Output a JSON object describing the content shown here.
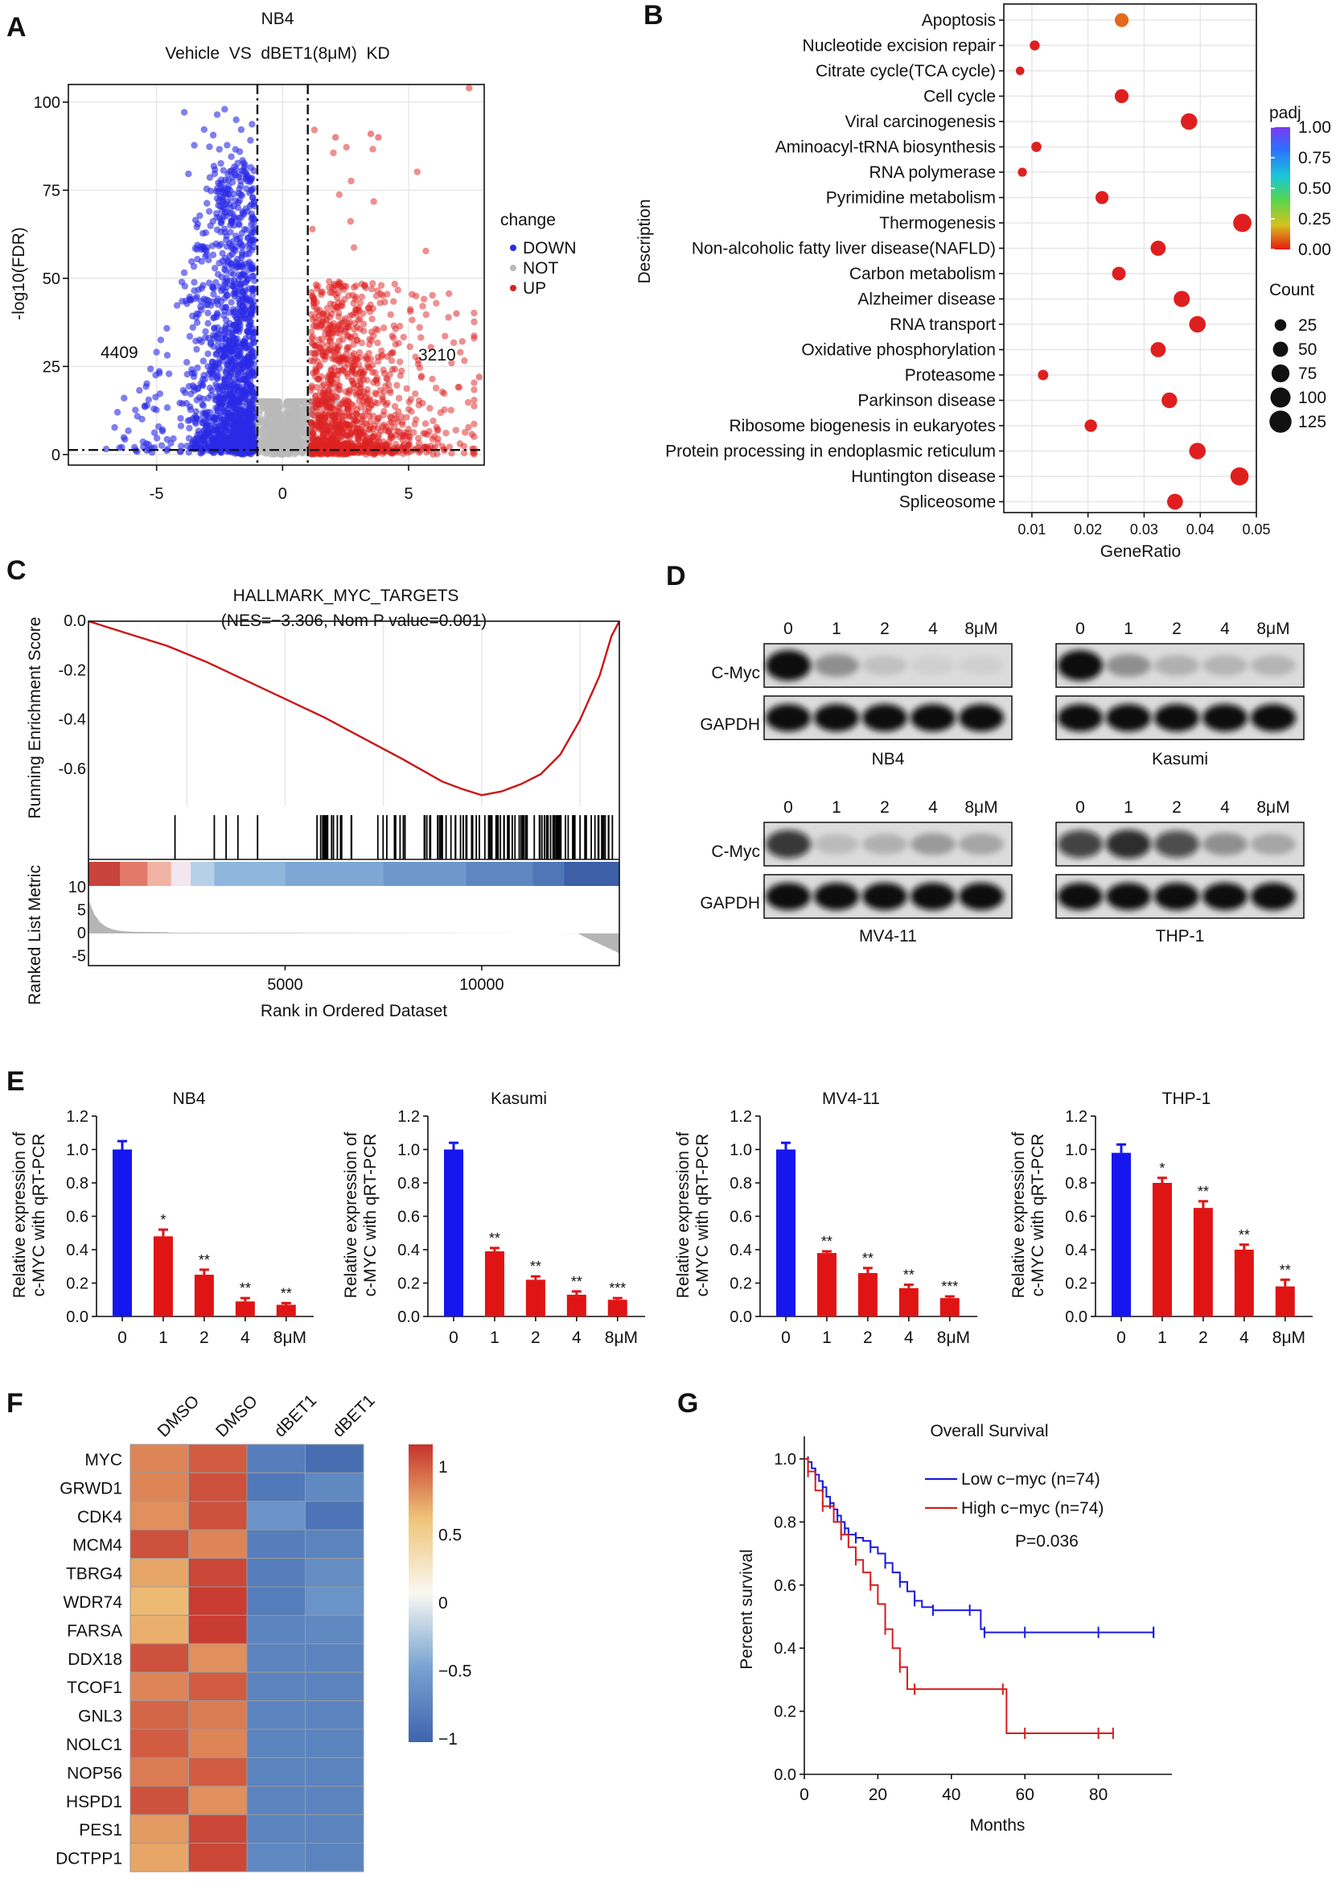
{
  "panels": {
    "A": "A",
    "B": "B",
    "C": "C",
    "D": "D",
    "E": "E",
    "F": "F",
    "G": "G"
  },
  "chart_data": [
    {
      "id": "A",
      "type": "scatter",
      "title": "NB4",
      "subtitle": "Vehicle  VS  dBET1(8μM)  KD",
      "xlabel": "",
      "ylabel": "-log10(FDR)",
      "xlim": [
        -8.5,
        8
      ],
      "ylim": [
        -3,
        105
      ],
      "xticks": [
        -5,
        0,
        5
      ],
      "yticks": [
        0,
        25,
        50,
        75,
        100
      ],
      "count_down": "4409",
      "count_up": "3210",
      "thresholds": {
        "x": [
          -1,
          1
        ],
        "y": 1.3
      },
      "legend": {
        "title": "change",
        "items": [
          {
            "label": "DOWN",
            "color": "#2a2ae6"
          },
          {
            "label": "NOT",
            "color": "#b9b9b9"
          },
          {
            "label": "UP",
            "color": "#dd2222"
          }
        ]
      }
    },
    {
      "id": "B",
      "type": "scatter",
      "xlabel": "GeneRatio",
      "ylabel": "Description",
      "xlim": [
        0.005,
        0.05
      ],
      "xticks": [
        0.01,
        0.02,
        0.03,
        0.04,
        0.05
      ],
      "xtick_labels": [
        "0.01",
        "0.02",
        "0.03",
        "0.04",
        "0.05"
      ],
      "terms": [
        {
          "label": "Apoptosis",
          "ratio": 0.026,
          "count": 40,
          "padj": 0.08
        },
        {
          "label": "Nucleotide excision repair",
          "ratio": 0.0105,
          "count": 16,
          "padj": 0.0
        },
        {
          "label": "Citrate cycle(TCA cycle)",
          "ratio": 0.0079,
          "count": 10,
          "padj": 0.0
        },
        {
          "label": "Cell cycle",
          "ratio": 0.026,
          "count": 40,
          "padj": 0.0
        },
        {
          "label": "Viral carcinogenesis",
          "ratio": 0.038,
          "count": 62,
          "padj": 0.0
        },
        {
          "label": "Aminoacyl-tRNA biosynthesis",
          "ratio": 0.0108,
          "count": 17,
          "padj": 0.0
        },
        {
          "label": "RNA polymerase",
          "ratio": 0.0083,
          "count": 12,
          "padj": 0.0
        },
        {
          "label": "Pyrimidine metabolism",
          "ratio": 0.0225,
          "count": 34,
          "padj": 0.0
        },
        {
          "label": "Thermogenesis",
          "ratio": 0.0475,
          "count": 80,
          "padj": 0.0
        },
        {
          "label": "Non-alcoholic fatty liver disease(NAFLD)",
          "ratio": 0.0325,
          "count": 50,
          "padj": 0.0
        },
        {
          "label": "Carbon metabolism",
          "ratio": 0.0255,
          "count": 38,
          "padj": 0.0
        },
        {
          "label": "Alzheimer disease",
          "ratio": 0.0367,
          "count": 58,
          "padj": 0.0
        },
        {
          "label": "RNA transport",
          "ratio": 0.0395,
          "count": 62,
          "padj": 0.0
        },
        {
          "label": "Oxidative phosphorylation",
          "ratio": 0.0325,
          "count": 50,
          "padj": 0.0
        },
        {
          "label": "Proteasome",
          "ratio": 0.012,
          "count": 18,
          "padj": 0.0
        },
        {
          "label": "Parkinson disease",
          "ratio": 0.0345,
          "count": 54,
          "padj": 0.0
        },
        {
          "label": "Ribosome biogenesis in eukaryotes",
          "ratio": 0.0205,
          "count": 30,
          "padj": 0.0
        },
        {
          "label": "Protein processing in endoplasmic reticulum",
          "ratio": 0.0395,
          "count": 62,
          "padj": 0.0
        },
        {
          "label": "Huntington disease",
          "ratio": 0.047,
          "count": 78,
          "padj": 0.0
        },
        {
          "label": "Spliceosome",
          "ratio": 0.0355,
          "count": 56,
          "padj": 0.0
        }
      ],
      "color_legend": {
        "title": "padj",
        "ticks": [
          "1.00",
          "0.75",
          "0.50",
          "0.25",
          "0.00"
        ]
      },
      "size_legend": {
        "title": "Count",
        "values": [
          25,
          50,
          75,
          100,
          125
        ]
      }
    },
    {
      "id": "C",
      "type": "line",
      "title": "HALLMARK_MYC_TARGETS",
      "subtitle": "(NES=−3.306, Nom P value=0.001)",
      "ylabel_top": "Running Enrichment Score",
      "ylabel_bottom": "Ranked List Metric",
      "xlabel": "Rank in Ordered Dataset",
      "xlim": [
        0,
        13500
      ],
      "xticks": [
        5000,
        10000
      ],
      "yticks_top": [
        "0.0",
        "-0.2",
        "-0.4",
        "-0.6"
      ],
      "yticks_bottom": [
        "10",
        "5",
        "0",
        "-5"
      ],
      "curve_x": [
        0,
        1000,
        2000,
        3000,
        4000,
        5000,
        6000,
        7000,
        8000,
        9000,
        9500,
        10000,
        10500,
        11000,
        11500,
        12000,
        12500,
        13000,
        13300,
        13500
      ],
      "curve_y": [
        0.0,
        -0.05,
        -0.1,
        -0.165,
        -0.24,
        -0.315,
        -0.39,
        -0.475,
        -0.56,
        -0.65,
        -0.68,
        -0.705,
        -0.69,
        -0.66,
        -0.62,
        -0.54,
        -0.4,
        -0.22,
        -0.06,
        0.0
      ]
    },
    {
      "id": "D",
      "type": "blot",
      "doses": [
        "0",
        "1",
        "2",
        "4",
        "8μM"
      ],
      "rows": [
        "C-Myc",
        "GAPDH"
      ],
      "cell_lines": [
        {
          "name": "NB4",
          "cmyc": [
            1.0,
            0.35,
            0.12,
            0.03,
            0.02
          ]
        },
        {
          "name": "Kasumi",
          "cmyc": [
            1.0,
            0.35,
            0.2,
            0.18,
            0.18
          ]
        },
        {
          "name": "MV4-11",
          "cmyc": [
            0.8,
            0.15,
            0.2,
            0.3,
            0.25
          ]
        },
        {
          "name": "THP-1",
          "cmyc": [
            0.75,
            0.85,
            0.7,
            0.35,
            0.25
          ]
        }
      ]
    },
    {
      "id": "E",
      "type": "bar",
      "ylabel": "Relative expression of c-MYC with qRT-PCR",
      "categories": [
        "0",
        "1",
        "2",
        "4",
        "8μM"
      ],
      "ylim": [
        0,
        1.2
      ],
      "yticks": [
        "0.0",
        "0.2",
        "0.4",
        "0.6",
        "0.8",
        "1.0",
        "1.2"
      ],
      "series": [
        {
          "name": "NB4",
          "values": [
            1.0,
            0.48,
            0.25,
            0.09,
            0.07
          ],
          "errors": [
            0.05,
            0.04,
            0.03,
            0.02,
            0.01
          ],
          "stars": [
            "",
            "*",
            "**",
            "**",
            "**"
          ]
        },
        {
          "name": "Kasumi",
          "values": [
            1.0,
            0.39,
            0.22,
            0.13,
            0.1
          ],
          "errors": [
            0.04,
            0.02,
            0.02,
            0.02,
            0.01
          ],
          "stars": [
            "",
            "**",
            "**",
            "**",
            "***"
          ]
        },
        {
          "name": "MV4-11",
          "values": [
            1.0,
            0.38,
            0.26,
            0.17,
            0.11
          ],
          "errors": [
            0.04,
            0.01,
            0.03,
            0.02,
            0.01
          ],
          "stars": [
            "",
            "**",
            "**",
            "**",
            "***"
          ]
        },
        {
          "name": "THP-1",
          "values": [
            0.98,
            0.8,
            0.65,
            0.4,
            0.18
          ],
          "errors": [
            0.05,
            0.03,
            0.04,
            0.03,
            0.04
          ],
          "stars": [
            "",
            "*",
            "**",
            "**",
            "**"
          ]
        }
      ],
      "colors": {
        "control": "#1616ee",
        "treated": "#e01414"
      }
    },
    {
      "id": "F",
      "type": "heatmap",
      "columns": [
        "DMSO",
        "DMSO",
        "dBET1",
        "dBET1"
      ],
      "rows": [
        "MYC",
        "GRWD1",
        "CDK4",
        "MCM4",
        "TBRG4",
        "WDR74",
        "FARSA",
        "DDX18",
        "TCOF1",
        "GNL3",
        "NOLC1",
        "NOP56",
        "HSPD1",
        "PES1",
        "DCTPP1"
      ],
      "values": [
        [
          0.8,
          1.0,
          -0.95,
          -1.1
        ],
        [
          0.8,
          1.05,
          -1.0,
          -0.85
        ],
        [
          0.75,
          1.05,
          -0.75,
          -1.05
        ],
        [
          1.05,
          0.8,
          -0.95,
          -0.9
        ],
        [
          0.65,
          1.1,
          -0.95,
          -0.8
        ],
        [
          0.55,
          1.15,
          -0.95,
          -0.75
        ],
        [
          0.6,
          1.15,
          -0.9,
          -0.85
        ],
        [
          1.05,
          0.75,
          -0.9,
          -0.9
        ],
        [
          0.8,
          1.0,
          -0.9,
          -0.9
        ],
        [
          0.95,
          0.85,
          -0.9,
          -0.9
        ],
        [
          1.0,
          0.8,
          -0.9,
          -0.9
        ],
        [
          0.85,
          1.0,
          -0.9,
          -0.9
        ],
        [
          1.05,
          0.75,
          -0.9,
          -0.9
        ],
        [
          0.7,
          1.1,
          -0.9,
          -0.9
        ],
        [
          0.65,
          1.1,
          -0.85,
          -0.9
        ]
      ],
      "scale_ticks": [
        "1",
        "0.5",
        "0",
        "−0.5",
        "−1"
      ]
    },
    {
      "id": "G",
      "type": "line",
      "title": "Overall Survival",
      "xlabel": "Months",
      "ylabel": "Percent survival",
      "xlim": [
        0,
        100
      ],
      "ylim": [
        0,
        1.0
      ],
      "xticks": [
        "0",
        "20",
        "40",
        "60",
        "80"
      ],
      "yticks": [
        "0.0",
        "0.2",
        "0.4",
        "0.6",
        "0.8",
        "1.0"
      ],
      "p_value": "P=0.036",
      "series": [
        {
          "name": "Low c−myc (n=74)",
          "color": "#1a1ae0",
          "x": [
            0,
            1,
            2,
            3,
            4,
            5,
            6,
            7,
            8,
            9,
            10,
            11,
            12,
            14,
            16,
            18,
            20,
            22,
            24,
            26,
            28,
            30,
            32,
            35,
            40,
            45,
            48,
            49,
            50,
            60,
            70,
            80,
            90,
            95
          ],
          "y": [
            1.0,
            0.99,
            0.97,
            0.95,
            0.93,
            0.91,
            0.88,
            0.86,
            0.84,
            0.82,
            0.8,
            0.78,
            0.76,
            0.75,
            0.74,
            0.72,
            0.7,
            0.67,
            0.64,
            0.61,
            0.58,
            0.55,
            0.53,
            0.52,
            0.52,
            0.52,
            0.46,
            0.45,
            0.45,
            0.45,
            0.45,
            0.45,
            0.45,
            0.45
          ]
        },
        {
          "name": "High c−myc (n=74)",
          "color": "#d81c1c",
          "x": [
            0,
            1,
            3,
            5,
            8,
            10,
            12,
            14,
            16,
            18,
            20,
            22,
            24,
            26,
            28,
            30,
            50,
            54,
            55,
            60,
            70,
            80,
            84
          ],
          "y": [
            1.0,
            0.96,
            0.9,
            0.85,
            0.8,
            0.76,
            0.72,
            0.68,
            0.64,
            0.6,
            0.54,
            0.46,
            0.4,
            0.34,
            0.27,
            0.27,
            0.27,
            0.27,
            0.13,
            0.13,
            0.13,
            0.13,
            0.13
          ]
        }
      ]
    }
  ]
}
